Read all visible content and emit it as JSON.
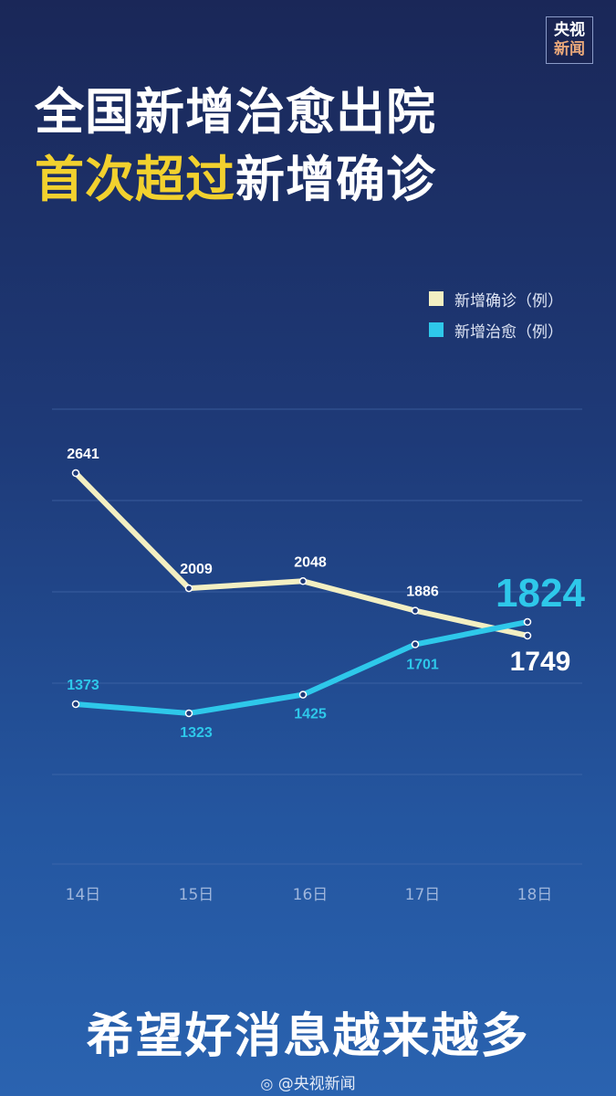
{
  "logo": {
    "line1": "央视",
    "line2": "新闻"
  },
  "title": {
    "line1": "全国新增治愈出院",
    "line2_highlight": "首次超过",
    "line2_rest": "新增确诊"
  },
  "colors": {
    "confirmed": "#f3efc2",
    "cured": "#2ec8ea",
    "highlight": "#f2d12e"
  },
  "chart_data": {
    "type": "line",
    "categories": [
      "14日",
      "15日",
      "16日",
      "17日",
      "18日"
    ],
    "series": [
      {
        "name": "新增确诊（例）",
        "values": [
          2641,
          2009,
          2048,
          1886,
          1749
        ]
      },
      {
        "name": "新增治愈（例）",
        "values": [
          1373,
          1323,
          1425,
          1701,
          1824
        ]
      }
    ],
    "grid": true,
    "legend": "top-right"
  },
  "footer": {
    "slogan": "希望好消息越来越多",
    "credit": "@央视新闻",
    "credit_icon": "weibo-icon"
  }
}
